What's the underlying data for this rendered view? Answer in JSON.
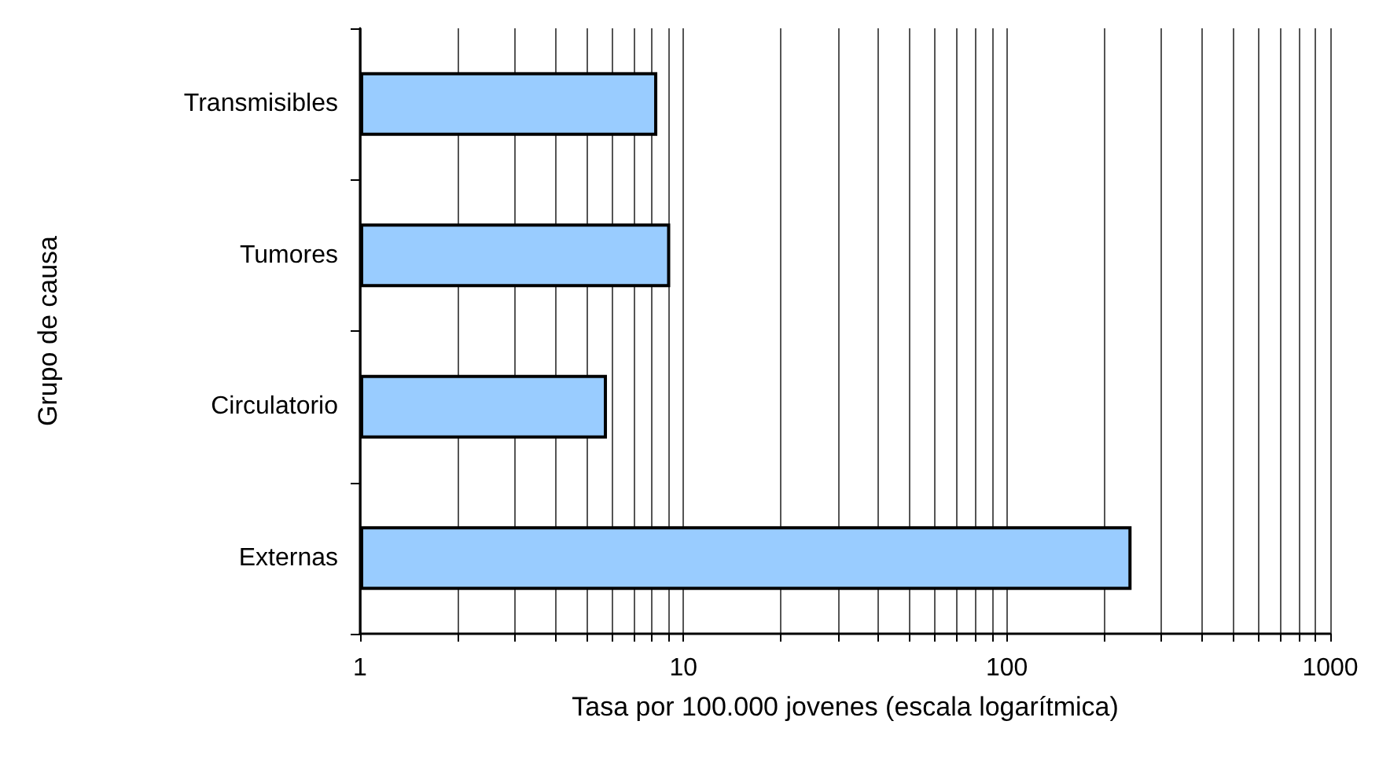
{
  "chart_data": {
    "type": "bar",
    "orientation": "horizontal",
    "log": "x",
    "categories": [
      "Transmisibles",
      "Tumores",
      "Circulatorio",
      "Externas"
    ],
    "values": [
      8.3,
      9.1,
      5.8,
      243
    ],
    "color": "#99ccff",
    "xlim": [
      1,
      1000
    ],
    "xticks": [
      1,
      {
        "value": 2,
        "label": null
      },
      {
        "value": 3,
        "label": null
      },
      {
        "value": 4,
        "label": null
      },
      {
        "value": 5,
        "label": null
      },
      {
        "value": 6,
        "label": null
      },
      {
        "value": 7,
        "label": null
      },
      {
        "value": 8,
        "label": null
      },
      {
        "value": 9,
        "label": null
      },
      10,
      {
        "value": 20,
        "label": null
      },
      {
        "value": 30,
        "label": null
      },
      {
        "value": 40,
        "label": null
      },
      {
        "value": 50,
        "label": null
      },
      {
        "value": 60,
        "label": null
      },
      {
        "value": 70,
        "label": null
      },
      {
        "value": 80,
        "label": null
      },
      {
        "value": 90,
        "label": null
      },
      100,
      {
        "value": 200,
        "label": null
      },
      {
        "value": 300,
        "label": null
      },
      {
        "value": 400,
        "label": null
      },
      {
        "value": 500,
        "label": null
      },
      {
        "value": 600,
        "label": null
      },
      {
        "value": 700,
        "label": null
      },
      {
        "value": 800,
        "label": null
      },
      {
        "value": 900,
        "label": null
      },
      1000
    ],
    "xlabel": "Tasa por 100.000 jovenes (escala logarítmica)",
    "ylabel": "Grupo de causa",
    "grid": "x"
  }
}
